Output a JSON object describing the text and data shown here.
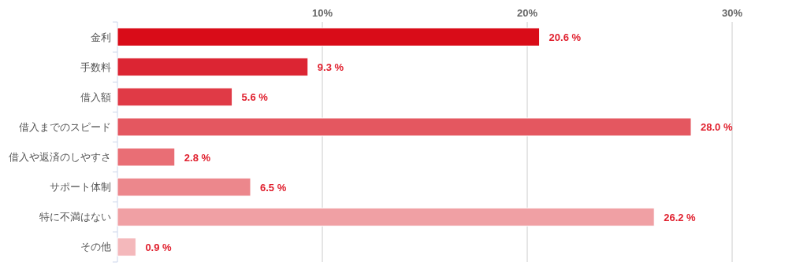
{
  "chart_data": {
    "type": "bar",
    "orientation": "horizontal",
    "categories": [
      "金利",
      "手数料",
      "借入額",
      "借入までのスピード",
      "借入や返済のしやすさ",
      "サポート体制",
      "特に不満はない",
      "その他"
    ],
    "values": [
      20.6,
      9.3,
      5.6,
      28.0,
      2.8,
      6.5,
      26.2,
      0.9
    ],
    "value_labels": [
      "20.6 %",
      "9.3 %",
      "5.6 %",
      "28.0 %",
      "2.8 %",
      "6.5 %",
      "26.2 %",
      "0.9 %"
    ],
    "colors": [
      "#d90c18",
      "#dc2533",
      "#e03a46",
      "#e45760",
      "#e96e75",
      "#ec878c",
      "#f0a0a4",
      "#f4b8bb"
    ],
    "xlim": [
      0,
      30
    ],
    "xticks": [
      {
        "value": 10,
        "label": "10%"
      },
      {
        "value": 20,
        "label": "20%"
      },
      {
        "value": 30,
        "label": "30%"
      }
    ],
    "grid": "x"
  }
}
